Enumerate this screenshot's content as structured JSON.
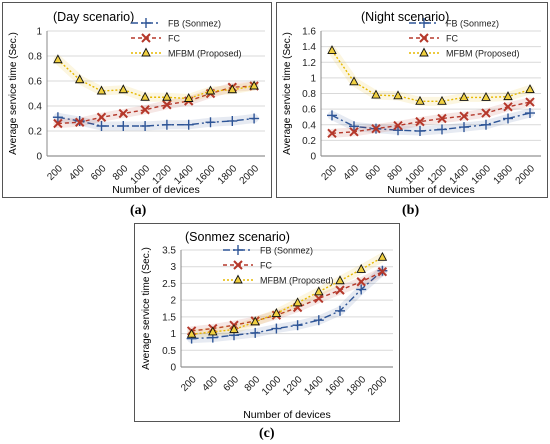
{
  "chart_data": [
    {
      "type": "line",
      "panel_label": "(a)",
      "title": "(Day scenario)",
      "xlabel": "Number of devices",
      "ylabel": "Average service time (Sec.)",
      "categories": [
        "200",
        "400",
        "600",
        "800",
        "1000",
        "1200",
        "1400",
        "1600",
        "1800",
        "2000"
      ],
      "ylim": [
        0,
        1
      ],
      "yticks": [
        0,
        0.2,
        0.4,
        0.6,
        0.8,
        1
      ],
      "ytick_labels": [
        "0",
        "0.2",
        "0.4",
        "0.6",
        "0.8",
        "1"
      ],
      "grid": true,
      "legend_position": "top-right",
      "series": [
        {
          "name": "FB (Sonmez)",
          "color": "#2e5597",
          "dash": "7,3,2,3",
          "marker": "plus",
          "values": [
            0.31,
            0.28,
            0.24,
            0.24,
            0.24,
            0.25,
            0.25,
            0.27,
            0.28,
            0.3
          ]
        },
        {
          "name": "FC",
          "color": "#b5382b",
          "dash": "4,3",
          "marker": "x",
          "values": [
            0.26,
            0.27,
            0.31,
            0.34,
            0.37,
            0.41,
            0.44,
            0.5,
            0.55,
            0.56
          ]
        },
        {
          "name": "MFBM (Proposed)",
          "color": "#e6b800",
          "dash": "2,2",
          "marker": "triangle",
          "values": [
            0.77,
            0.61,
            0.52,
            0.53,
            0.47,
            0.47,
            0.46,
            0.52,
            0.53,
            0.56
          ]
        }
      ]
    },
    {
      "type": "line",
      "panel_label": "(b)",
      "title": "(Night scenario)",
      "xlabel": "Number of devices",
      "ylabel": "Average service time (Sec.)",
      "categories": [
        "200",
        "400",
        "600",
        "800",
        "1000",
        "1200",
        "1400",
        "1600",
        "1800",
        "2000"
      ],
      "ylim": [
        0,
        1.6
      ],
      "yticks": [
        0,
        0.2,
        0.4,
        0.6,
        0.8,
        1,
        1.2,
        1.4,
        1.6
      ],
      "ytick_labels": [
        "0",
        "0.2",
        "0.4",
        "0.6",
        "0.8",
        "1",
        "1.2",
        "1.4",
        "1.6"
      ],
      "grid": true,
      "legend_position": "top-right",
      "series": [
        {
          "name": "FB (Sonmez)",
          "color": "#2e5597",
          "dash": "7,3,2,3",
          "marker": "plus",
          "values": [
            0.52,
            0.38,
            0.35,
            0.33,
            0.32,
            0.34,
            0.37,
            0.4,
            0.48,
            0.55
          ]
        },
        {
          "name": "FC",
          "color": "#b5382b",
          "dash": "4,3",
          "marker": "x",
          "values": [
            0.29,
            0.31,
            0.35,
            0.39,
            0.44,
            0.48,
            0.51,
            0.55,
            0.63,
            0.69
          ]
        },
        {
          "name": "MFBM (Proposed)",
          "color": "#e6b800",
          "dash": "2,2",
          "marker": "triangle",
          "values": [
            1.35,
            0.95,
            0.78,
            0.77,
            0.7,
            0.7,
            0.75,
            0.75,
            0.76,
            0.85
          ]
        }
      ]
    },
    {
      "type": "line",
      "panel_label": "(c)",
      "title": "(Sonmez scenario)",
      "xlabel": "Number of devices",
      "ylabel": "Average service time (Sec.)",
      "categories": [
        "200",
        "400",
        "600",
        "800",
        "1000",
        "1200",
        "1400",
        "1600",
        "1800",
        "2000"
      ],
      "ylim": [
        0,
        3.5
      ],
      "yticks": [
        0,
        0.5,
        1,
        1.5,
        2,
        2.5,
        3,
        3.5
      ],
      "ytick_labels": [
        "0",
        "0.5",
        "1",
        "1.5",
        "2",
        "2.5",
        "3",
        "3.5"
      ],
      "grid": true,
      "legend_position": "top-right",
      "series": [
        {
          "name": "FB (Sonmez)",
          "color": "#2e5597",
          "dash": "7,3,2,3",
          "marker": "plus",
          "values": [
            0.85,
            0.88,
            0.95,
            1.02,
            1.15,
            1.25,
            1.4,
            1.68,
            2.32,
            2.88
          ]
        },
        {
          "name": "FC",
          "color": "#b5382b",
          "dash": "4,3",
          "marker": "x",
          "values": [
            1.08,
            1.15,
            1.25,
            1.38,
            1.55,
            1.78,
            2.05,
            2.3,
            2.55,
            2.85
          ]
        },
        {
          "name": "MFBM (Proposed)",
          "color": "#e6b800",
          "dash": "2,2",
          "marker": "triangle",
          "values": [
            0.98,
            1.05,
            1.12,
            1.35,
            1.6,
            1.92,
            2.25,
            2.58,
            2.92,
            3.28
          ]
        }
      ]
    }
  ]
}
